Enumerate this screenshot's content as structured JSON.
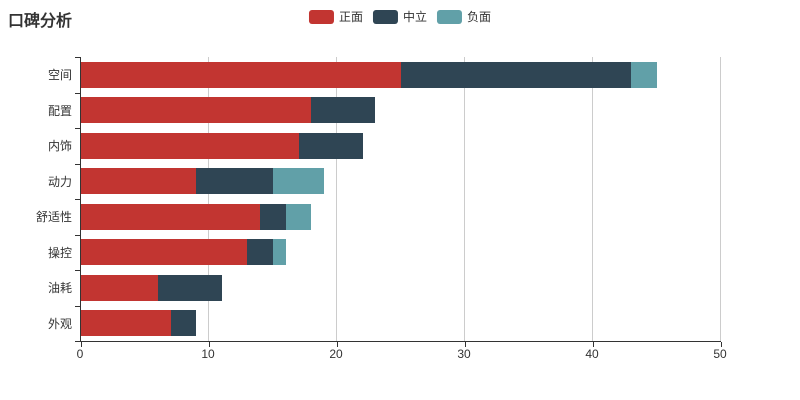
{
  "title": "口碑分析",
  "legend": {
    "items": [
      {
        "key": "positive",
        "label": "正面",
        "color": "#c23531"
      },
      {
        "key": "neutral",
        "label": "中立",
        "color": "#2f4554"
      },
      {
        "key": "negative",
        "label": "负面",
        "color": "#61a0a8"
      }
    ]
  },
  "chart_data": {
    "type": "bar",
    "orientation": "horizontal",
    "stacked": true,
    "title": "口碑分析",
    "categories": [
      "空间",
      "配置",
      "内饰",
      "动力",
      "舒适性",
      "操控",
      "油耗",
      "外观"
    ],
    "series": [
      {
        "key": "positive",
        "name": "正面",
        "color": "#c23531",
        "values": [
          25,
          18,
          17,
          9,
          14,
          13,
          6,
          7
        ]
      },
      {
        "key": "neutral",
        "name": "中立",
        "color": "#2f4554",
        "values": [
          18,
          5,
          5,
          6,
          2,
          2,
          5,
          2
        ]
      },
      {
        "key": "negative",
        "name": "负面",
        "color": "#61a0a8",
        "values": [
          2,
          0,
          0,
          4,
          2,
          1,
          0,
          0
        ]
      }
    ],
    "xlim": [
      0,
      50
    ],
    "x_ticks": [
      0,
      10,
      20,
      30,
      40,
      50
    ],
    "grid": true,
    "legend_position": "top",
    "axis_color": "#333333",
    "grid_color": "#cccccc",
    "label_color": "#333333",
    "background": "#ffffff"
  }
}
